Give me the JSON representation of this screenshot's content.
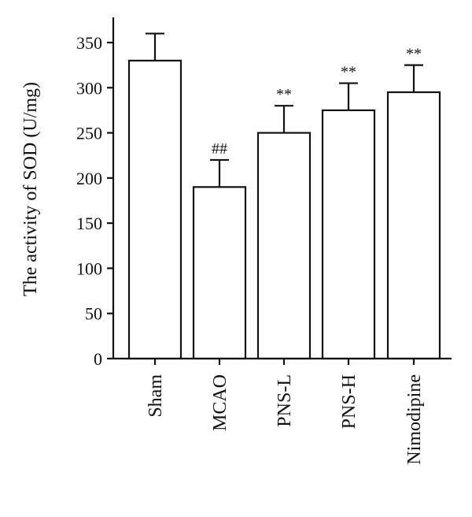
{
  "chart_data": {
    "type": "bar",
    "categories": [
      "Sham",
      "MCAO",
      "PNS-L",
      "PNS-H",
      "Nimodipine"
    ],
    "values": [
      330,
      190,
      250,
      275,
      295
    ],
    "error": [
      30,
      30,
      30,
      30,
      30
    ],
    "annotations": [
      "",
      "##",
      "**",
      "**",
      "**"
    ],
    "ylabel": "The activity of SOD (U/mg)",
    "ylim": [
      0,
      375
    ],
    "yticks": [
      0,
      50,
      100,
      150,
      200,
      250,
      300,
      350
    ],
    "bar_fill": "#ffffff",
    "line_color": "#111111",
    "grid": false,
    "legend": "none"
  }
}
